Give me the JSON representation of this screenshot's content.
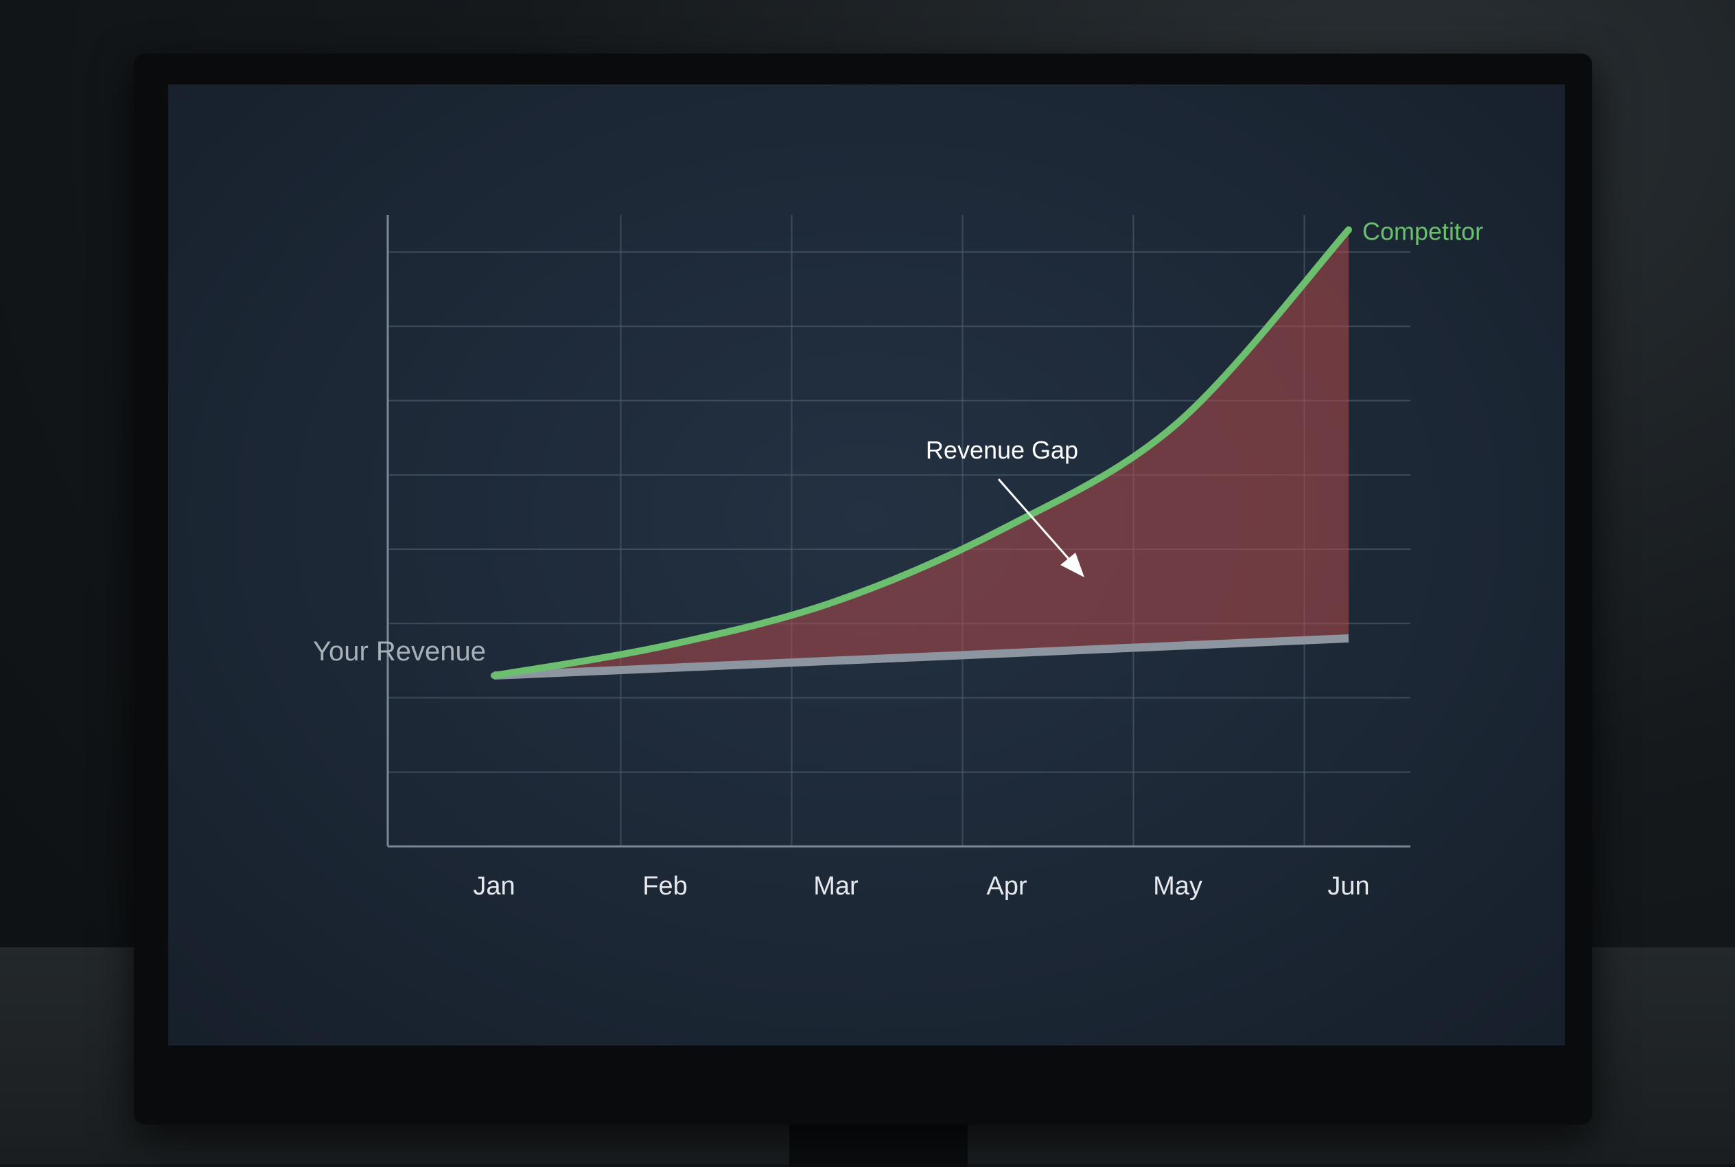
{
  "chart_data": {
    "type": "area",
    "title": "",
    "xlabel": "",
    "ylabel": "",
    "categories": [
      "Jan",
      "Feb",
      "Mar",
      "Apr",
      "May",
      "Jun"
    ],
    "ylim": [
      0,
      8.5
    ],
    "grid": true,
    "series": [
      {
        "name": "Competitor",
        "values": [
          2.3,
          2.7,
          3.3,
          4.3,
          5.7,
          8.3
        ],
        "color": "#6bbf6e"
      },
      {
        "name": "Your Revenue",
        "values": [
          2.3,
          2.4,
          2.5,
          2.6,
          2.7,
          2.8
        ],
        "color": "#8d96a0"
      }
    ],
    "fill_between": {
      "color": "#b34a4a"
    },
    "annotation": {
      "text": "Revenue Gap",
      "color": "#ffffff"
    }
  }
}
